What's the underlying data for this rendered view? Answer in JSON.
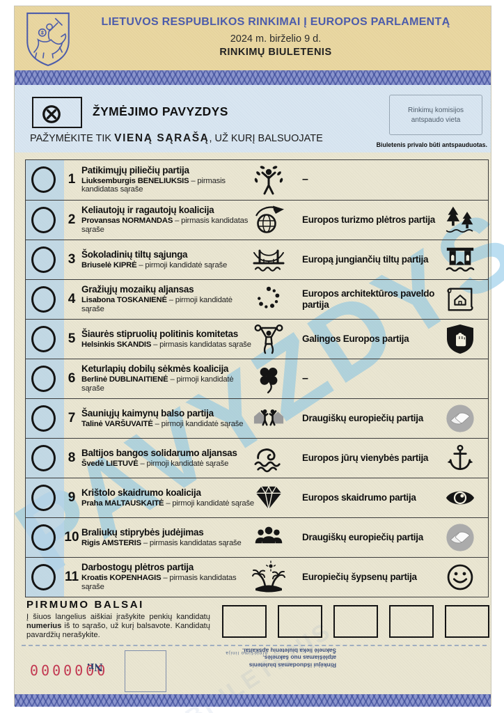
{
  "header": {
    "title": "LIETUVOS RESPUBLIKOS RINKIMAI Į EUROPOS PARLAMENTĄ",
    "date": "2024 m. birželio 9 d.",
    "subtitle": "RINKIMŲ BIULETENIS",
    "coat_of_arms_icon": "vytis-coat-of-arms"
  },
  "instructions": {
    "sample_icon": "circle-x-mark",
    "sample_label": "ŽYMĖJIMO PAVYZDYS",
    "mark_prefix": "PAŽYMĖKITE TIK ",
    "mark_bold": "VIENĄ SĄRAŠĄ",
    "mark_suffix": ", UŽ KURĮ BALSUOJATE",
    "stamp_box_line1": "Rinkimų komisijos",
    "stamp_box_line2": "antspaudo vieta",
    "stamp_note": "Biuletenis privalo būti antspauduotas."
  },
  "watermark": "PAVYZDYS",
  "parties": [
    {
      "number": "1",
      "name": "Patikimųjų piliečių partija",
      "candidate_bold": "Liuksemburgis BENELIUKSIS",
      "candidate_rest": "– pirmasis kandidatas sąraše",
      "icon": "person-leaves",
      "euro_party": "–",
      "euro_icon": null
    },
    {
      "number": "2",
      "name": "Keliautojų ir ragautojų koalicija",
      "candidate_bold": "Provansas NORMANDAS",
      "candidate_rest": "– pirmasis kandidatas sąraše",
      "icon": "globe-plane",
      "euro_party": "Europos turizmo plėtros partija",
      "euro_icon": "pine-trees"
    },
    {
      "number": "3",
      "name": "Šokoladinių tiltų sąjunga",
      "candidate_bold": "Briuselė KIPRĖ",
      "candidate_rest": "– pirmoji kandidatė sąraše",
      "icon": "suspension-bridge",
      "euro_party": "Europą jungiančių tiltų partija",
      "euro_icon": "arch-bridge"
    },
    {
      "number": "4",
      "name": "Gražiųjų mozaikų aljansas",
      "candidate_bold": "Lisabona TOSKANIENĖ",
      "candidate_rest": "– pirmoji kandidatė sąraše",
      "icon": "mosaic-dots",
      "euro_party": "Europos architektūros paveldo partija",
      "euro_icon": "blueprint-house"
    },
    {
      "number": "5",
      "name": "Šiaurės stipruolių politinis komitetas",
      "candidate_bold": "Helsinkis SKANDIS",
      "candidate_rest": "– pirmasis kandidatas sąraše",
      "icon": "weightlifter",
      "euro_party": "Galingos Europos partija",
      "euro_icon": "shield-fist"
    },
    {
      "number": "6",
      "name": "Keturlapių dobilų sėkmės koalicija",
      "candidate_bold": "Berlinė DUBLINAITIENĖ",
      "candidate_rest": "– pirmoji kandidatė sąraše",
      "icon": "four-leaf-clover",
      "euro_party": "–",
      "euro_icon": null
    },
    {
      "number": "7",
      "name": "Šauniųjų kaimynų balso partija",
      "candidate_bold": "Talinė VARŠUVAITĖ",
      "candidate_rest": "– pirmoji kandidatė sąraše",
      "icon": "neighbors-waving",
      "euro_party": "Draugiškų europiečių partija",
      "euro_icon": "handshake"
    },
    {
      "number": "8",
      "name": "Baltijos bangos solidarumo aljansas",
      "candidate_bold": "Švedė LIETUVĖ",
      "candidate_rest": "– pirmoji kandidatė sąraše",
      "icon": "sea-wave",
      "euro_party": "Europos jūrų vienybės partija",
      "euro_icon": "anchor"
    },
    {
      "number": "9",
      "name": "Krištolo skaidrumo koalicija",
      "candidate_bold": "Praha MALTAUSKAITĖ",
      "candidate_rest": "– pirmoji kandidatė sąraše",
      "icon": "diamond-gem",
      "euro_party": "Europos skaidrumo partija",
      "euro_icon": "eye"
    },
    {
      "number": "10",
      "name": "Braliukų stiprybės judėjimas",
      "candidate_bold": "Rigis AMSTERIS",
      "candidate_rest": "– pirmasis kandidatas sąraše",
      "icon": "people-group",
      "euro_party": "Draugiškų europiečių partija",
      "euro_icon": "handshake"
    },
    {
      "number": "11",
      "name": "Darbostogų plėtros partija",
      "candidate_bold": "Kroatis KOPENHAGIS",
      "candidate_rest": "– pirmasis kandidatas sąraše",
      "icon": "palm-island",
      "euro_party": "Europiečių šypsenų partija",
      "euro_icon": "smiley-face"
    }
  ],
  "preference": {
    "title": "PIRMUMO BALSAI",
    "text_before": "Į šiuos langelius aiškiai įrašykite penkių kandidatų ",
    "text_bold": "numerius",
    "text_after": " iš to sąrašo, už kurį balsavote. Kandidatų pavardžių nerašykite.",
    "box_count": 5
  },
  "stub": {
    "serial": "0000000",
    "number_label": "Nr.",
    "tear_line_label": "Atplėšimo linija",
    "note_line1": "Rinkėjui išduodamas biuletenis atplėšiamas nuo šaknelės.",
    "note_line2": "Šaknelė lieka biuletenių apskaitai.",
    "ghost_watermark": "BIULETENIS"
  },
  "colors": {
    "header_tan": "#e9d7a2",
    "title_blue": "#4c5cab",
    "band_blue": "#8a94cc",
    "instruction_blue": "#d9e6f1",
    "body_cream": "#eae6d2",
    "strip_blue": "#cfe2ee",
    "watermark_blue": "#7dc0e4",
    "serial_red": "#c23750"
  }
}
